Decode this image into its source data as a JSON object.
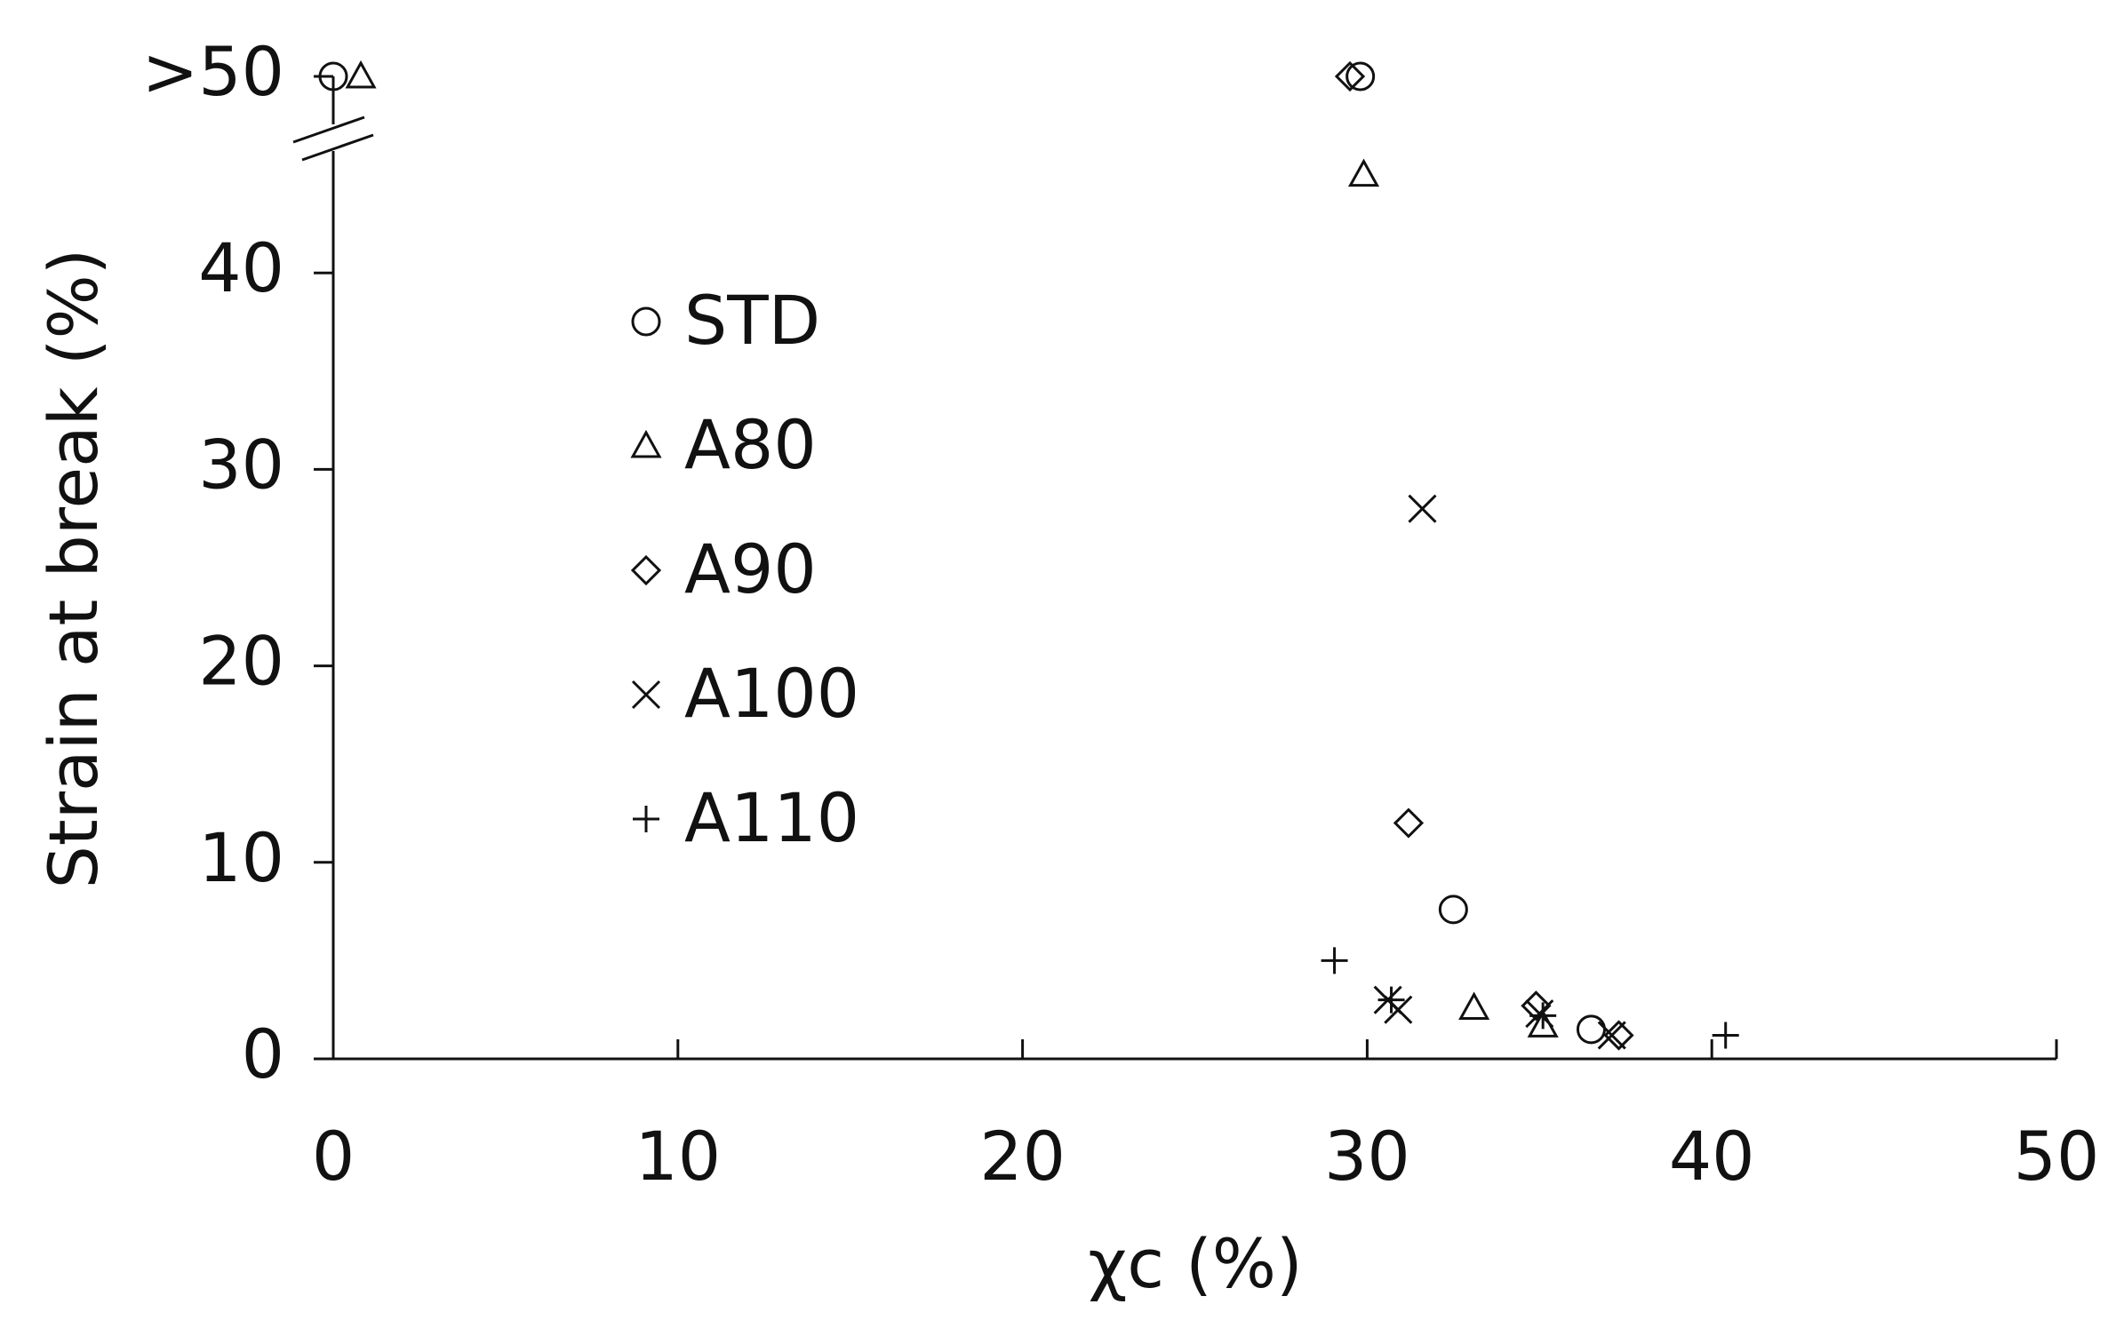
{
  "chart_data": {
    "type": "scatter",
    "x_label": "χc (%)",
    "y_label": "Strain at break (%)",
    "xlim": [
      0,
      50
    ],
    "xticks": [
      0,
      10,
      20,
      30,
      40,
      50
    ],
    "ylim": [
      0,
      50
    ],
    "yticks": [
      0,
      10,
      20,
      30,
      40,
      {
        "value": 50,
        "label": ">50"
      }
    ],
    "series": [
      {
        "name": "STD",
        "marker": "circle",
        "color": "#111111",
        "x": [
          0,
          29.8,
          32.5,
          36.5
        ],
        "values": [
          50,
          50,
          7.6,
          1.5
        ]
      },
      {
        "name": "A80",
        "marker": "triangle",
        "color": "#111111",
        "x": [
          0.8,
          29.9,
          33.1,
          35.1
        ],
        "values": [
          50,
          45,
          2.6,
          1.7
        ]
      },
      {
        "name": "A90",
        "marker": "diamond",
        "color": "#111111",
        "x": [
          29.5,
          31.2,
          34.9,
          37.3
        ],
        "values": [
          50,
          12,
          2.7,
          1.2
        ]
      },
      {
        "name": "A100",
        "marker": "x",
        "color": "#111111",
        "x": [
          31.6,
          30.6,
          30.9,
          35.0,
          37.1
        ],
        "values": [
          28,
          3,
          2.5,
          2.3,
          1.2
        ]
      },
      {
        "name": "A110",
        "marker": "plus",
        "color": "#111111",
        "x": [
          29.05,
          30.7,
          35.1,
          40.4
        ],
        "values": [
          5,
          3,
          2.2,
          1.2
        ]
      }
    ]
  }
}
